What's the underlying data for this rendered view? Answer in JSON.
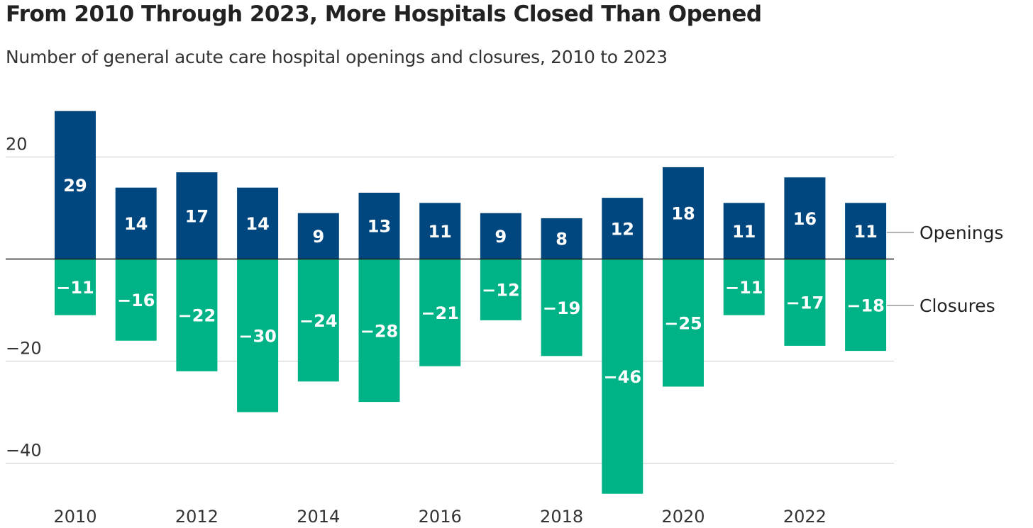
{
  "chart_data": {
    "type": "bar",
    "title": "From 2010 Through 2023, More Hospitals Closed Than Opened",
    "subtitle": "Number of general acute care hospital openings and closures, 2010 to 2023",
    "categories": [
      2010,
      2011,
      2012,
      2013,
      2014,
      2015,
      2016,
      2017,
      2018,
      2019,
      2020,
      2021,
      2022,
      2023
    ],
    "x_tick_labels": [
      "2010",
      "2012",
      "2014",
      "2016",
      "2018",
      "2020",
      "2022"
    ],
    "y_ticks": [
      20,
      -20,
      -40
    ],
    "y_tick_labels": [
      "20",
      "−20",
      "−40"
    ],
    "ylim": [
      -46,
      29
    ],
    "grid": true,
    "series": [
      {
        "name": "Openings",
        "color": "#00467f",
        "values": [
          29,
          14,
          17,
          14,
          9,
          13,
          11,
          9,
          8,
          12,
          18,
          11,
          16,
          11
        ]
      },
      {
        "name": "Closures",
        "color": "#00b386",
        "values": [
          -11,
          -16,
          -22,
          -30,
          -24,
          -28,
          -21,
          -12,
          -19,
          -46,
          -25,
          -11,
          -17,
          -18
        ]
      }
    ],
    "legend_placement": "right, direct labels"
  }
}
